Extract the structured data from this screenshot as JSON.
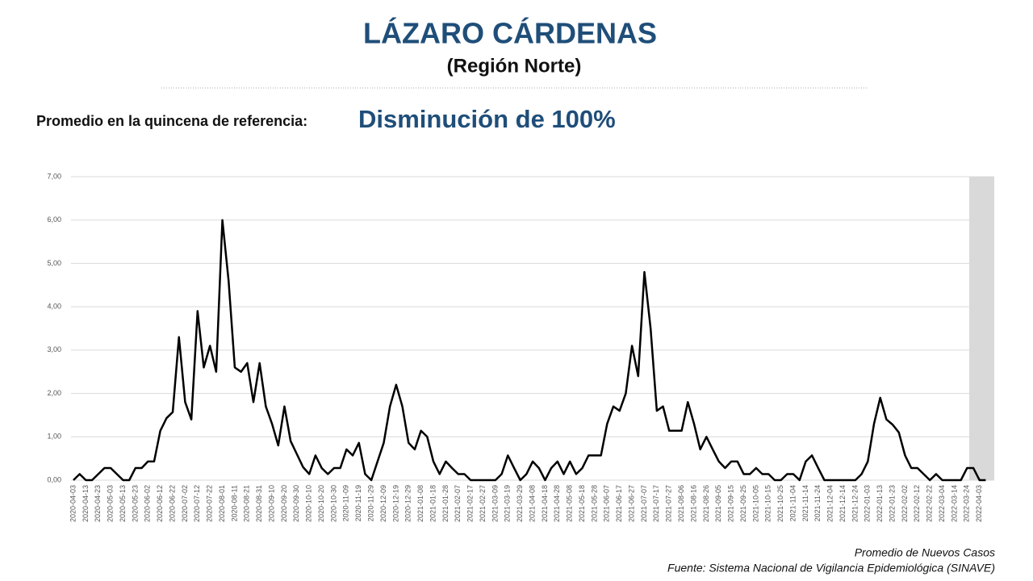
{
  "chart_data": {
    "type": "line",
    "title": "LÁZARO CÁRDENAS",
    "subtitle": "(Región Norte)",
    "reference_label": "Promedio en la quincena de referencia:",
    "reference_value": "Disminución de 100%",
    "legend_label": "Promedio de Nuevos Casos",
    "source": "Fuente: Sistema Nacional de Vigilancia Epidemiológica (SINAVE)",
    "color": "#000000",
    "grid": true,
    "ylim": [
      0,
      7
    ],
    "yticks": [
      {
        "value": 0,
        "label": "0,00"
      },
      {
        "value": 1,
        "label": "1,00"
      },
      {
        "value": 2,
        "label": "2,00"
      },
      {
        "value": 3,
        "label": "3,00"
      },
      {
        "value": 4,
        "label": "4,00"
      },
      {
        "value": 5,
        "label": "5,00"
      },
      {
        "value": 6,
        "label": "6,00"
      },
      {
        "value": 7,
        "label": "7,00"
      }
    ],
    "categories": [
      "2020-04-03",
      null,
      "2020-04-13",
      null,
      "2020-04-23",
      null,
      "2020-05-03",
      null,
      "2020-05-13",
      null,
      "2020-05-23",
      null,
      "2020-06-02",
      null,
      "2020-06-12",
      null,
      "2020-06-22",
      null,
      "2020-07-02",
      null,
      "2020-07-12",
      null,
      "2020-07-22",
      null,
      "2020-08-01",
      null,
      "2020-08-11",
      null,
      "2020-08-21",
      null,
      "2020-08-31",
      null,
      "2020-09-10",
      null,
      "2020-09-20",
      null,
      "2020-09-30",
      null,
      "2020-10-10",
      null,
      "2020-10-20",
      null,
      "2020-10-30",
      null,
      "2020-11-09",
      null,
      "2020-11-19",
      null,
      "2020-11-29",
      null,
      "2020-12-09",
      null,
      "2020-12-19",
      null,
      "2020-12-29",
      null,
      "2021-01-08",
      null,
      "2021-01-18",
      null,
      "2021-01-28",
      null,
      "2021-02-07",
      null,
      "2021-02-17",
      null,
      "2021-02-27",
      null,
      "2021-03-09",
      null,
      "2021-03-19",
      null,
      "2021-03-29",
      null,
      "2021-04-08",
      null,
      "2021-04-18",
      null,
      "2021-04-28",
      null,
      "2021-05-08",
      null,
      "2021-05-18",
      null,
      "2021-05-28",
      null,
      "2021-06-07",
      null,
      "2021-06-17",
      null,
      "2021-06-27",
      null,
      "2021-07-07",
      null,
      "2021-07-17",
      null,
      "2021-07-27",
      null,
      "2021-08-06",
      null,
      "2021-08-16",
      null,
      "2021-08-26",
      null,
      "2021-09-05",
      null,
      "2021-09-15",
      null,
      "2021-09-25",
      null,
      "2021-10-05",
      null,
      "2021-10-15",
      null,
      "2021-10-25",
      null,
      "2021-11-04",
      null,
      "2021-11-14",
      null,
      "2021-11-24",
      null,
      "2021-12-04",
      null,
      "2021-12-14",
      null,
      "2021-12-24",
      null,
      "2022-01-03",
      null,
      "2022-01-13",
      null,
      "2022-01-23",
      null,
      "2022-02-02",
      null,
      "2022-02-12",
      null,
      "2022-02-22",
      null,
      "2022-03-04",
      null,
      "2022-03-14",
      null,
      "2022-03-24",
      null,
      "2022-04-03",
      null
    ],
    "values": [
      0,
      0.14,
      0,
      0,
      0.14,
      0.28,
      0.28,
      0.14,
      0,
      0,
      0.28,
      0.28,
      0.43,
      0.43,
      1.14,
      1.43,
      1.57,
      3.3,
      1.8,
      1.4,
      3.9,
      2.6,
      3.1,
      2.5,
      6.0,
      4.6,
      2.6,
      2.5,
      2.7,
      1.8,
      2.7,
      1.7,
      1.3,
      0.8,
      1.7,
      0.9,
      0.6,
      0.3,
      0.14,
      0.57,
      0.28,
      0.14,
      0.28,
      0.28,
      0.71,
      0.57,
      0.86,
      0.14,
      0,
      0.43,
      0.86,
      1.7,
      2.2,
      1.7,
      0.86,
      0.71,
      1.14,
      1.0,
      0.43,
      0.14,
      0.43,
      0.28,
      0.14,
      0.14,
      0,
      0,
      0,
      0,
      0,
      0.14,
      0.57,
      0.28,
      0,
      0.14,
      0.43,
      0.28,
      0,
      0.28,
      0.43,
      0.14,
      0.43,
      0.14,
      0.28,
      0.57,
      0.57,
      0.57,
      1.3,
      1.7,
      1.6,
      2.0,
      3.1,
      2.4,
      4.8,
      3.5,
      1.6,
      1.7,
      1.14,
      1.14,
      1.14,
      1.8,
      1.3,
      0.71,
      1.0,
      0.71,
      0.43,
      0.28,
      0.43,
      0.43,
      0.14,
      0.14,
      0.28,
      0.14,
      0.14,
      0,
      0,
      0.14,
      0.14,
      0,
      0.43,
      0.57,
      0.28,
      0,
      0,
      0,
      0,
      0,
      0,
      0.14,
      0.43,
      1.3,
      1.9,
      1.4,
      1.28,
      1.1,
      0.57,
      0.28,
      0.28,
      0.14,
      0,
      0.14,
      0,
      0,
      0,
      0,
      0.28,
      0.28,
      0,
      0
    ]
  }
}
